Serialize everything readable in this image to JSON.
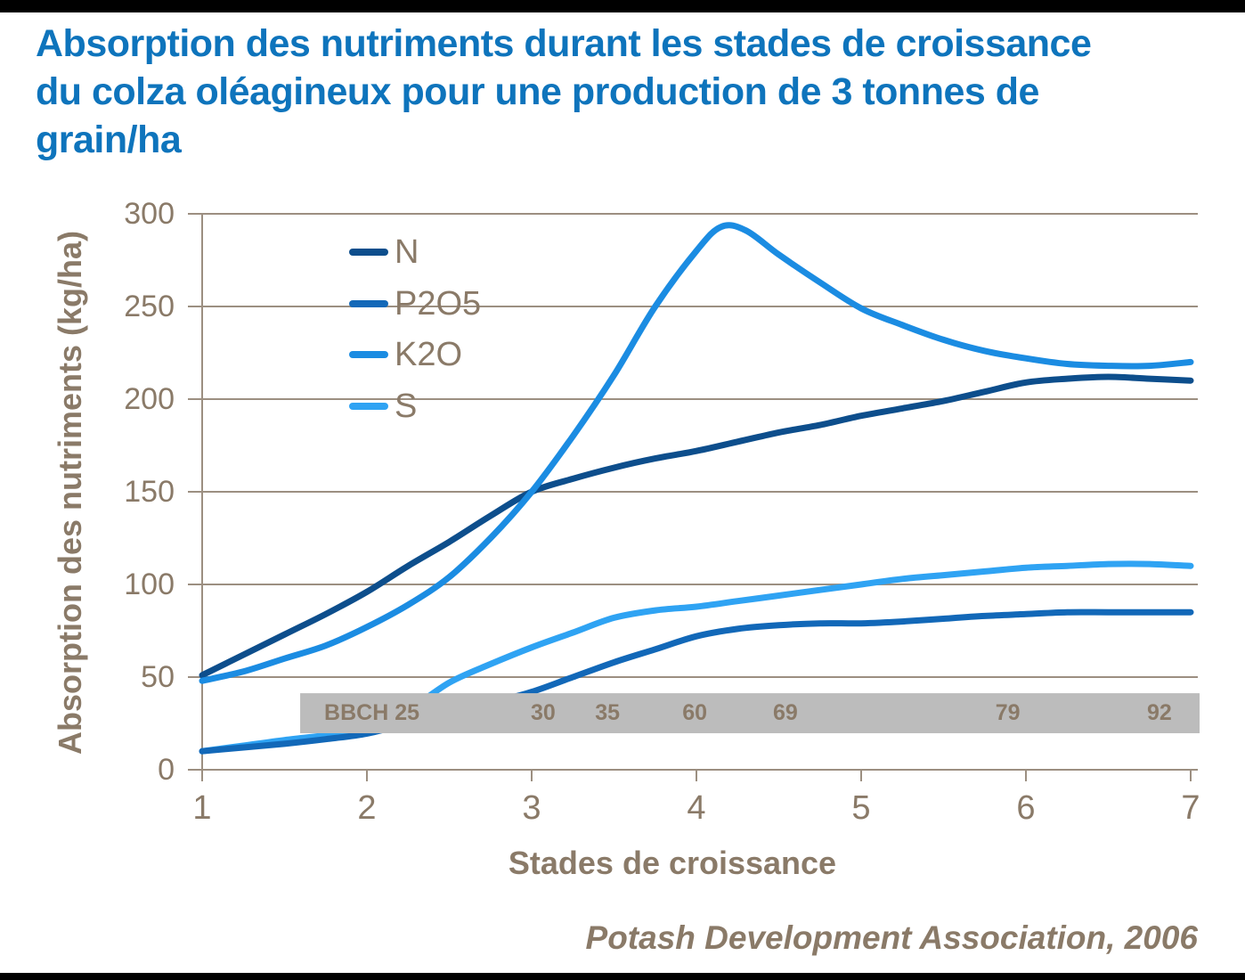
{
  "page": {
    "title_lines": [
      "Absorption des nutriments durant les stades de croissance",
      "du colza oléagineux pour une production de 3 tonnes de",
      "grain/ha"
    ]
  },
  "colors": {
    "title": "#0e74bc",
    "text": "#8a7a68",
    "axis": "#9c8f81",
    "band": "#bcbcbc",
    "frame_bars": "#000000",
    "series": {
      "N": "#0d4e8c",
      "P2O5": "#1268b8",
      "K2O": "#1b8ce2",
      "S": "#2fa3f3"
    }
  },
  "chart_data": {
    "type": "line",
    "title": "Absorption des nutriments durant les stades de croissance du colza oléagineux pour une production de 3 tonnes de grain/ha",
    "xlabel": "Stades de croissance",
    "ylabel": "Absorption des nutriments (kg/ha)",
    "source": "Potash Development Association, 2006",
    "xlim": [
      1,
      7
    ],
    "ylim": [
      0,
      300
    ],
    "x_ticks": [
      "1",
      "2",
      "3",
      "4",
      "5",
      "6",
      "7"
    ],
    "y_ticks": [
      "0",
      "50",
      "100",
      "150",
      "200",
      "250",
      "300"
    ],
    "y_tick_values": [
      0,
      50,
      100,
      150,
      200,
      250,
      300
    ],
    "x_tick_values": [
      1,
      2,
      3,
      4,
      5,
      6,
      7
    ],
    "grid": "horizontal",
    "legend_position": "inside-upper-left",
    "legend": [
      "N",
      "P2O5",
      "K2O",
      "S"
    ],
    "series": [
      {
        "name": "N",
        "color": "#0d4e8c",
        "points": [
          [
            1,
            51
          ],
          [
            1.25,
            62
          ],
          [
            1.5,
            73
          ],
          [
            1.75,
            84
          ],
          [
            2,
            96
          ],
          [
            2.25,
            110
          ],
          [
            2.5,
            123
          ],
          [
            2.75,
            137
          ],
          [
            3,
            150
          ],
          [
            3.25,
            157
          ],
          [
            3.5,
            163
          ],
          [
            3.75,
            168
          ],
          [
            4,
            172
          ],
          [
            4.25,
            177
          ],
          [
            4.5,
            182
          ],
          [
            4.75,
            186
          ],
          [
            5,
            191
          ],
          [
            5.25,
            195
          ],
          [
            5.5,
            199
          ],
          [
            5.75,
            204
          ],
          [
            6,
            209
          ],
          [
            6.25,
            211
          ],
          [
            6.5,
            212
          ],
          [
            6.75,
            211
          ],
          [
            7,
            210
          ]
        ]
      },
      {
        "name": "P2O5",
        "color": "#1268b8",
        "points": [
          [
            1,
            10
          ],
          [
            1.25,
            12
          ],
          [
            1.5,
            14
          ],
          [
            1.75,
            16.5
          ],
          [
            2,
            19.5
          ],
          [
            2.25,
            25
          ],
          [
            2.5,
            30
          ],
          [
            2.75,
            36
          ],
          [
            3,
            42
          ],
          [
            3.25,
            50
          ],
          [
            3.5,
            58
          ],
          [
            3.75,
            65
          ],
          [
            4,
            72
          ],
          [
            4.25,
            76
          ],
          [
            4.5,
            78
          ],
          [
            4.75,
            79
          ],
          [
            5,
            79
          ],
          [
            5.25,
            80
          ],
          [
            5.5,
            81.5
          ],
          [
            5.75,
            83
          ],
          [
            6,
            84
          ],
          [
            6.25,
            85
          ],
          [
            6.5,
            85
          ],
          [
            6.75,
            85
          ],
          [
            7,
            85
          ]
        ]
      },
      {
        "name": "K2O",
        "color": "#1b8ce2",
        "points": [
          [
            1,
            48
          ],
          [
            1.25,
            53
          ],
          [
            1.5,
            60
          ],
          [
            1.75,
            67
          ],
          [
            2,
            77
          ],
          [
            2.25,
            89
          ],
          [
            2.5,
            104
          ],
          [
            2.75,
            125
          ],
          [
            3,
            150
          ],
          [
            3.25,
            180
          ],
          [
            3.5,
            213
          ],
          [
            3.75,
            250
          ],
          [
            4,
            280
          ],
          [
            4.15,
            293
          ],
          [
            4.3,
            291
          ],
          [
            4.5,
            278
          ],
          [
            4.75,
            263
          ],
          [
            5,
            249
          ],
          [
            5.25,
            240
          ],
          [
            5.5,
            232
          ],
          [
            5.75,
            226
          ],
          [
            6,
            222
          ],
          [
            6.25,
            219
          ],
          [
            6.5,
            218
          ],
          [
            6.75,
            218
          ],
          [
            7,
            220
          ]
        ]
      },
      {
        "name": "S",
        "color": "#2fa3f3",
        "points": [
          [
            1,
            10
          ],
          [
            1.25,
            13
          ],
          [
            1.5,
            16
          ],
          [
            1.75,
            18.5
          ],
          [
            2,
            21
          ],
          [
            2.25,
            32
          ],
          [
            2.5,
            47
          ],
          [
            2.75,
            57
          ],
          [
            3,
            66
          ],
          [
            3.25,
            74
          ],
          [
            3.5,
            82
          ],
          [
            3.75,
            86
          ],
          [
            4,
            88
          ],
          [
            4.25,
            91
          ],
          [
            4.5,
            94
          ],
          [
            4.75,
            97
          ],
          [
            5,
            100
          ],
          [
            5.25,
            103
          ],
          [
            5.5,
            105
          ],
          [
            5.75,
            107
          ],
          [
            6,
            109
          ],
          [
            6.25,
            110
          ],
          [
            6.5,
            111
          ],
          [
            6.75,
            111
          ],
          [
            7,
            110
          ]
        ]
      }
    ],
    "bbch_band": {
      "x_range_stage": [
        1.595,
        7.054
      ],
      "y_range_kg": [
        19.7,
        41.3
      ],
      "labels": [
        {
          "text": "BBCH 25",
          "stage": 2.03
        },
        {
          "text": "30",
          "stage": 3.07
        },
        {
          "text": "35",
          "stage": 3.46
        },
        {
          "text": "60",
          "stage": 3.99
        },
        {
          "text": "69",
          "stage": 4.54
        },
        {
          "text": "79",
          "stage": 5.89
        },
        {
          "text": "92",
          "stage": 6.81
        }
      ]
    }
  }
}
